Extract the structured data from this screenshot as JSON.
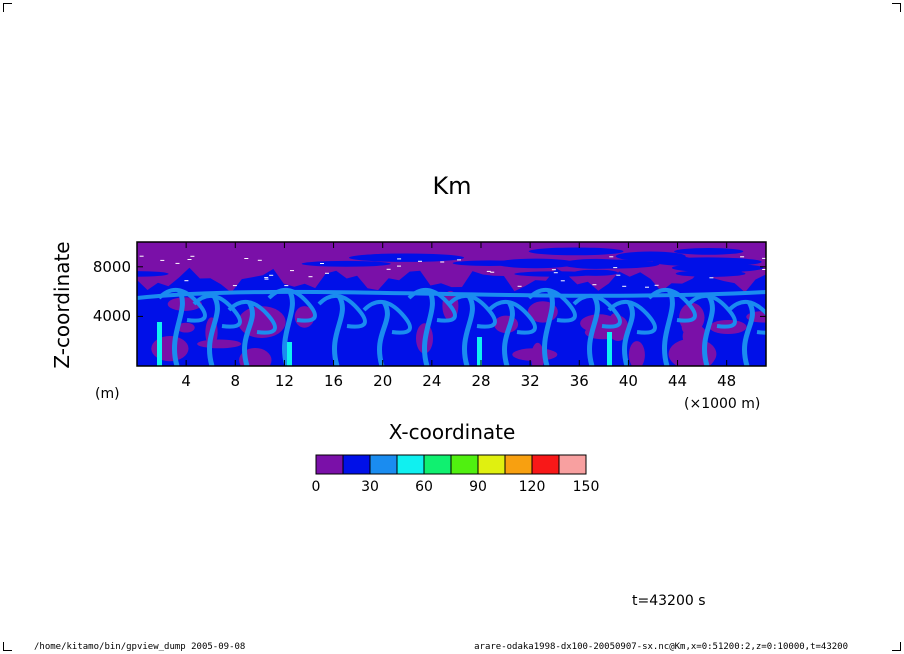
{
  "chart_data": {
    "type": "heatmap",
    "title": "Km",
    "xlabel": "X-coordinate",
    "ylabel": "Z-coordinate",
    "x_unit": "(×1000 m)",
    "y_unit": "(m)",
    "xlim": [
      0,
      51200
    ],
    "ylim": [
      0,
      10000
    ],
    "x_ticks": [
      {
        "value": 4000,
        "label": "4"
      },
      {
        "value": 8000,
        "label": "8"
      },
      {
        "value": 12000,
        "label": "12"
      },
      {
        "value": 16000,
        "label": "16"
      },
      {
        "value": 20000,
        "label": "20"
      },
      {
        "value": 24000,
        "label": "24"
      },
      {
        "value": 28000,
        "label": "28"
      },
      {
        "value": 32000,
        "label": "32"
      },
      {
        "value": 36000,
        "label": "36"
      },
      {
        "value": 40000,
        "label": "40"
      },
      {
        "value": 44000,
        "label": "44"
      },
      {
        "value": 48000,
        "label": "48"
      }
    ],
    "y_ticks": [
      {
        "value": 4000,
        "label": "4000"
      },
      {
        "value": 8000,
        "label": "8000"
      }
    ],
    "colorbar": {
      "levels": [
        0,
        15,
        30,
        45,
        60,
        75,
        90,
        105,
        120,
        135,
        150
      ],
      "colors": [
        "#7a10a8",
        "#0010e8",
        "#1a8cf0",
        "#10f0f0",
        "#10f070",
        "#50f010",
        "#e0f010",
        "#f8a010",
        "#f81818",
        "#f8a0a0"
      ],
      "tick_labels": [
        "0",
        "30",
        "60",
        "90",
        "120",
        "150"
      ],
      "tick_values": [
        0,
        30,
        60,
        90,
        120,
        150
      ]
    },
    "field_description_colors": {
      "background": "#7a10a8",
      "low": "#0010e8",
      "mid": "#1a8cf0",
      "high": "#10f0f0"
    }
  },
  "annotations": {
    "time": "t=43200 s",
    "footer_left": "/home/kitamo/bin/gpview_dump  2005-09-08",
    "footer_right": "arare-odaka1998-dx100-20050907-sx.nc@Km,x=0:51200:2,z=0:10000,t=43200"
  }
}
